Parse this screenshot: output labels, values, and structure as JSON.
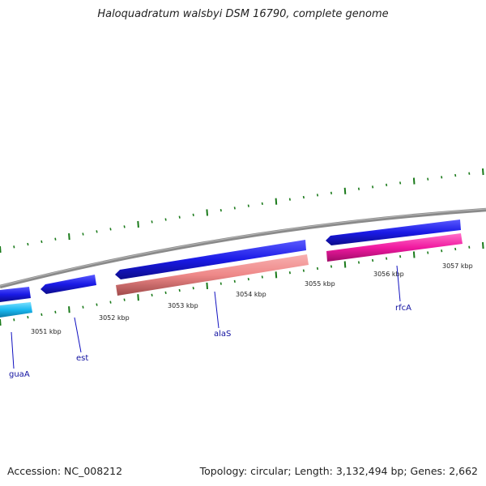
{
  "title": "Haloquadratum walsbyi DSM 16790, complete genome",
  "footer": {
    "accession": "Accession: NC_008212",
    "summary": "Topology: circular; Length: 3,132,494 bp; Genes: 2,662"
  },
  "kbp_labels": [
    "3051 kbp",
    "3052 kbp",
    "3053 kbp",
    "3054 kbp",
    "3055 kbp",
    "3056 kbp",
    "3057 kbp"
  ],
  "gene_labels": [
    "guaA",
    "est",
    "alaS",
    "rfcA"
  ],
  "colors": {
    "backbone": "#8a8a8a",
    "cds_blue": "#1a1ae6",
    "guaA": "#1ab8f0",
    "alaS": "#f08a8a",
    "rfcA": "#f01aa0",
    "ticks": "#1a7a1a",
    "label_lines": "#1010c0"
  }
}
